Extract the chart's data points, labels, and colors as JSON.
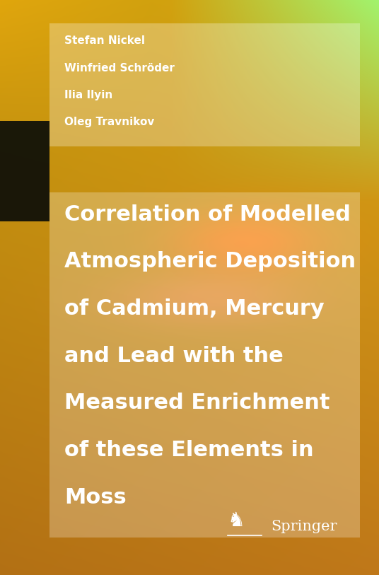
{
  "authors": [
    "Stefan Nickel",
    "Winfried Schröder",
    "Ilia Ilyin",
    "Oleg Travnikov"
  ],
  "title_lines": [
    "Correlation of Modelled",
    "Atmospheric Deposition",
    "of Cadmium, Mercury",
    "and Lead with the",
    "Measured Enrichment",
    "of these Elements in",
    "Moss"
  ],
  "springer_text": "Springer",
  "author_font_size": 11,
  "title_font_size": 22,
  "springer_font_size": 15,
  "author_text_color": "#ffffff",
  "title_text_color": "#ffffff",
  "springer_text_color": "#ffffff",
  "dark_rect_color": "#1a1a0a",
  "springer_logo_color": "#ffffff",
  "figwidth": 5.36,
  "figheight": 8.13,
  "dpi": 100
}
